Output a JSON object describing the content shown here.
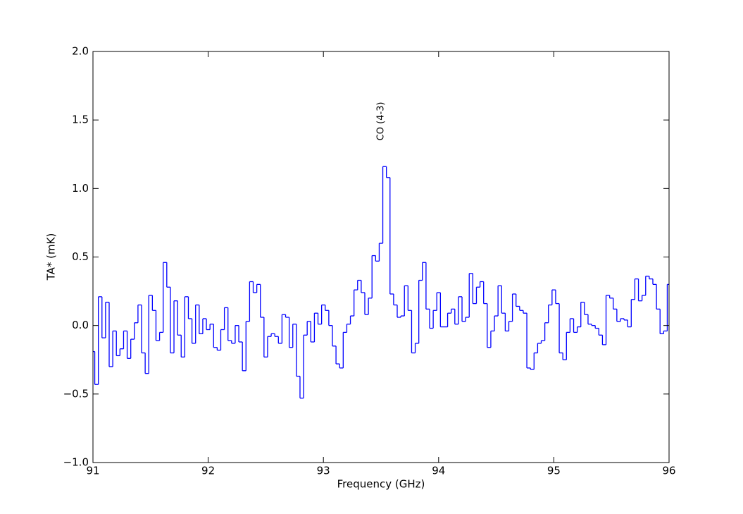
{
  "chart_data": {
    "type": "step",
    "xlabel": "Frequency (GHz)",
    "ylabel": "TA* (mK)",
    "xlim": [
      91,
      96
    ],
    "ylim": [
      -1.0,
      2.0
    ],
    "xticks": [
      91,
      92,
      93,
      94,
      95,
      96
    ],
    "yticks": [
      {
        "value": -1.0,
        "label": "−1.0"
      },
      {
        "value": -0.5,
        "label": "−0.5"
      },
      {
        "value": 0.0,
        "label": "0.0"
      },
      {
        "value": 0.5,
        "label": "0.5"
      },
      {
        "value": 1.0,
        "label": "1.0"
      },
      {
        "value": 1.5,
        "label": "1.5"
      },
      {
        "value": 2.0,
        "label": "2.0"
      }
    ],
    "annotations": [
      {
        "text": "CO (4-3)",
        "x": 93.5,
        "y": 1.35
      }
    ],
    "series": [
      {
        "color": "#0000ff",
        "x": [
          91,
          91.03125,
          91.0625,
          91.09375,
          91.125,
          91.15625,
          91.1875,
          91.21875,
          91.25,
          91.28125,
          91.3125,
          91.34375,
          91.375,
          91.40625,
          91.4375,
          91.46875,
          91.5,
          91.53125,
          91.5625,
          91.59375,
          91.625,
          91.65625,
          91.6875,
          91.71875,
          91.75,
          91.78125,
          91.8125,
          91.84375,
          91.875,
          91.90625,
          91.9375,
          91.96875,
          92,
          92.03125,
          92.0625,
          92.09375,
          92.125,
          92.15625,
          92.1875,
          92.21875,
          92.25,
          92.28125,
          92.3125,
          92.34375,
          92.375,
          92.40625,
          92.4375,
          92.46875,
          92.5,
          92.53125,
          92.5625,
          92.59375,
          92.625,
          92.65625,
          92.6875,
          92.71875,
          92.75,
          92.78125,
          92.8125,
          92.84375,
          92.875,
          92.90625,
          92.9375,
          92.96875,
          93,
          93.03125,
          93.0625,
          93.09375,
          93.125,
          93.15625,
          93.1875,
          93.21875,
          93.25,
          93.28125,
          93.3125,
          93.34375,
          93.375,
          93.40625,
          93.4375,
          93.46875,
          93.5,
          93.53125,
          93.5625,
          93.59375,
          93.625,
          93.65625,
          93.6875,
          93.71875,
          93.75,
          93.78125,
          93.8125,
          93.84375,
          93.875,
          93.90625,
          93.9375,
          93.96875,
          94,
          94.03125,
          94.0625,
          94.09375,
          94.125,
          94.15625,
          94.1875,
          94.21875,
          94.25,
          94.28125,
          94.3125,
          94.34375,
          94.375,
          94.40625,
          94.4375,
          94.46875,
          94.5,
          94.53125,
          94.5625,
          94.59375,
          94.625,
          94.65625,
          94.6875,
          94.71875,
          94.75,
          94.78125,
          94.8125,
          94.84375,
          94.875,
          94.90625,
          94.9375,
          94.96875,
          95,
          95.03125,
          95.0625,
          95.09375,
          95.125,
          95.15625,
          95.1875,
          95.21875,
          95.25,
          95.28125,
          95.3125,
          95.34375,
          95.375,
          95.40625,
          95.4375,
          95.46875,
          95.5,
          95.53125,
          95.5625,
          95.59375,
          95.625,
          95.65625,
          95.6875,
          95.71875,
          95.75,
          95.78125,
          95.8125,
          95.84375,
          95.875,
          95.90625,
          95.9375,
          95.96875,
          96
        ],
        "values": [
          -0.19,
          -0.43,
          0.21,
          -0.09,
          0.17,
          -0.3,
          -0.04,
          -0.22,
          -0.17,
          -0.04,
          -0.24,
          -0.1,
          0.02,
          0.15,
          -0.2,
          -0.35,
          0.22,
          0.11,
          -0.11,
          -0.05,
          0.46,
          0.28,
          -0.2,
          0.18,
          -0.07,
          -0.23,
          0.21,
          0.05,
          -0.13,
          0.15,
          -0.06,
          0.05,
          -0.03,
          0.01,
          -0.16,
          -0.18,
          -0.03,
          0.13,
          -0.11,
          -0.13,
          0.0,
          -0.12,
          -0.33,
          0.03,
          0.32,
          0.24,
          0.3,
          0.06,
          -0.23,
          -0.08,
          -0.06,
          -0.08,
          -0.13,
          0.08,
          0.06,
          -0.16,
          0.01,
          -0.37,
          -0.53,
          -0.07,
          0.03,
          -0.12,
          0.09,
          0.01,
          0.15,
          0.11,
          0.0,
          -0.15,
          -0.28,
          -0.31,
          -0.05,
          0.01,
          0.07,
          0.26,
          0.33,
          0.24,
          0.08,
          0.2,
          0.51,
          0.47,
          0.6,
          1.16,
          1.08,
          0.23,
          0.15,
          0.06,
          0.07,
          0.29,
          0.11,
          -0.2,
          -0.13,
          0.33,
          0.46,
          0.12,
          -0.02,
          0.11,
          0.24,
          -0.01,
          -0.01,
          0.09,
          0.12,
          0.01,
          0.21,
          0.03,
          0.06,
          0.38,
          0.16,
          0.28,
          0.32,
          0.16,
          -0.16,
          -0.04,
          0.07,
          0.29,
          0.09,
          -0.04,
          0.03,
          0.23,
          0.14,
          0.11,
          0.09,
          -0.31,
          -0.32,
          -0.2,
          -0.13,
          -0.11,
          0.02,
          0.15,
          0.26,
          0.16,
          -0.2,
          -0.25,
          -0.05,
          0.05,
          -0.05,
          -0.01,
          0.17,
          0.08,
          0.01,
          0.0,
          -0.02,
          -0.07,
          -0.14,
          0.22,
          0.2,
          0.12,
          0.03,
          0.05,
          0.04,
          -0.01,
          0.19,
          0.34,
          0.18,
          0.22,
          0.36,
          0.34,
          0.3,
          0.12,
          -0.06,
          -0.04,
          0.3
        ]
      }
    ]
  }
}
